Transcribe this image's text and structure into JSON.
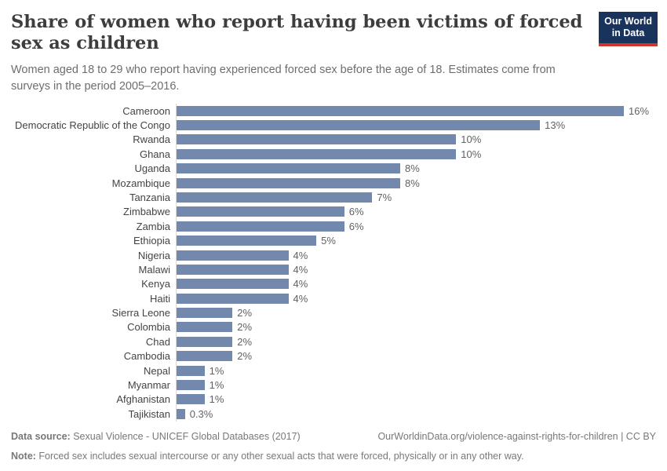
{
  "header": {
    "title": "Share of women who report having been victims of forced sex as children",
    "subtitle": "Women aged 18 to 29 who report having experienced forced sex before the age of 18. Estimates come from surveys in the period 2005–2016.",
    "logo": {
      "line1": "Our World",
      "line2": "in Data"
    }
  },
  "chart_data": {
    "type": "bar",
    "orientation": "horizontal",
    "title": "Share of women who report having been victims of forced sex as children",
    "categories": [
      "Cameroon",
      "Democratic Republic of the Congo",
      "Rwanda",
      "Ghana",
      "Uganda",
      "Mozambique",
      "Tanzania",
      "Zimbabwe",
      "Zambia",
      "Ethiopia",
      "Nigeria",
      "Malawi",
      "Kenya",
      "Haiti",
      "Sierra Leone",
      "Colombia",
      "Chad",
      "Cambodia",
      "Nepal",
      "Myanmar",
      "Afghanistan",
      "Tajikistan"
    ],
    "values": [
      16,
      13,
      10,
      10,
      8,
      8,
      7,
      6,
      6,
      5,
      4,
      4,
      4,
      4,
      2,
      2,
      2,
      2,
      1,
      1,
      1,
      0.3
    ],
    "value_labels": [
      "16%",
      "13%",
      "10%",
      "10%",
      "8%",
      "8%",
      "7%",
      "6%",
      "6%",
      "5%",
      "4%",
      "4%",
      "4%",
      "4%",
      "2%",
      "2%",
      "2%",
      "2%",
      "1%",
      "1%",
      "1%",
      "0.3%"
    ],
    "unit": "%",
    "xlim": [
      0,
      16
    ],
    "grid": false,
    "legend": "none",
    "bar_color": "#7289ad",
    "axis_line_color": "#dadada"
  },
  "footer": {
    "source_label": "Data source:",
    "source_text": " Sexual Violence - UNICEF Global Databases (2017)",
    "link_text": "OurWorldinData.org/violence-against-rights-for-children | CC BY",
    "note_label": "Note:",
    "note_text": " Forced sex includes sexual intercourse or any other sexual acts that were forced, physically or in any other way."
  },
  "colors": {
    "bar": "#7289ad",
    "logo_background": "#1a335c",
    "logo_accent": "#cf352c",
    "title_text": "#3d3d3d",
    "subtitle_text": "#6e6e6e",
    "footer_text": "#787878"
  }
}
